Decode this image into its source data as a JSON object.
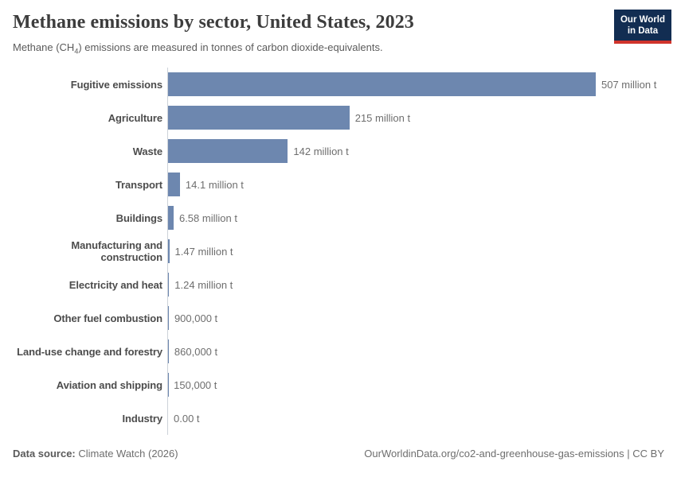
{
  "header": {
    "title": "Methane emissions by sector, United States, 2023",
    "subtitle_prefix": "Methane (CH",
    "subtitle_sub": "4",
    "subtitle_suffix": ") emissions are measured in tonnes of carbon dioxide-equivalents.",
    "logo_line1": "Our World",
    "logo_line2": "in Data"
  },
  "chart_data": {
    "type": "bar",
    "orientation": "horizontal",
    "title": "Methane emissions by sector, United States, 2023",
    "subtitle": "Methane (CH4) emissions are measured in tonnes of carbon dioxide-equivalents.",
    "categories": [
      "Fugitive emissions",
      "Agriculture",
      "Waste",
      "Transport",
      "Buildings",
      "Manufacturing and construction",
      "Electricity and heat",
      "Other fuel combustion",
      "Land-use change and forestry",
      "Aviation and shipping",
      "Industry"
    ],
    "values_million_t": [
      507,
      215,
      142,
      14.1,
      6.58,
      1.47,
      1.24,
      0.9,
      0.86,
      0.15,
      0
    ],
    "value_labels": [
      "507 million t",
      "215 million t",
      "142 million t",
      "14.1 million t",
      "6.58 million t",
      "1.47 million t",
      "1.24 million t",
      "900,000 t",
      "860,000 t",
      "150,000 t",
      "0.00 t"
    ],
    "xlim": [
      0,
      507
    ],
    "grid": false,
    "legend": "none",
    "bar_color": "#6d87af",
    "axis_color": "#cdd2d9"
  },
  "footer": {
    "source_label": "Data source:",
    "source_value": " Climate Watch (2026)",
    "right_text": "OurWorldinData.org/co2-and-greenhouse-gas-emissions | CC BY"
  },
  "colors": {
    "bar": "#6d87af",
    "logo_navy": "#122d52",
    "logo_red": "#d0342c"
  }
}
